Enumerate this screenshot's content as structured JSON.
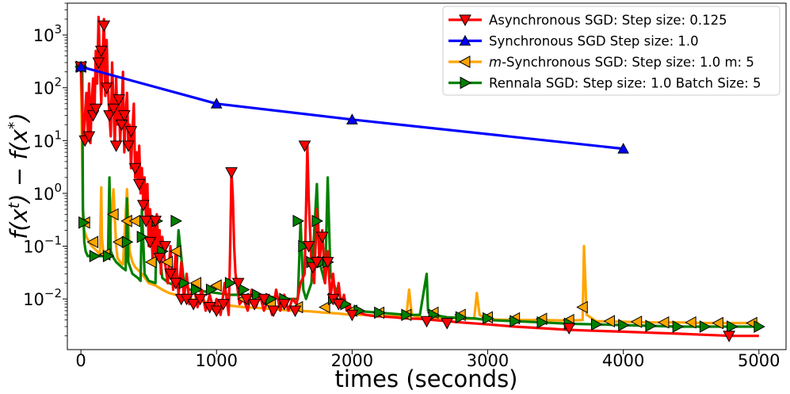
{
  "chart_data": {
    "type": "line",
    "title": "",
    "xlabel": "times (seconds)",
    "ylabel": "f(x^t) - f(x^*)",
    "xlim": [
      -100,
      5200
    ],
    "ylim": [
      0.0011,
      4000
    ],
    "yscale": "log",
    "x_ticks": [
      0,
      1000,
      2000,
      3000,
      4000,
      5000
    ],
    "y_ticks": [
      {
        "value": 0.01,
        "base": "10",
        "exp": "-2"
      },
      {
        "value": 0.1,
        "base": "10",
        "exp": "-1"
      },
      {
        "value": 1,
        "base": "10",
        "exp": "0"
      },
      {
        "value": 10,
        "base": "10",
        "exp": "1"
      },
      {
        "value": 100,
        "base": "10",
        "exp": "2"
      },
      {
        "value": 1000,
        "base": "10",
        "exp": "3"
      }
    ],
    "legend_position": "top-right",
    "series": [
      {
        "name": "Asynchronous SGD: Step size: 0.125",
        "color": "#ff0000",
        "marker": "triangle-down",
        "x": [
          0,
          10,
          20,
          30,
          40,
          50,
          60,
          70,
          80,
          90,
          100,
          110,
          120,
          130,
          140,
          150,
          160,
          170,
          180,
          190,
          200,
          210,
          220,
          230,
          240,
          250,
          260,
          270,
          280,
          290,
          300,
          310,
          320,
          330,
          340,
          350,
          360,
          370,
          380,
          390,
          400,
          410,
          420,
          430,
          440,
          450,
          460,
          470,
          480,
          490,
          500,
          510,
          520,
          530,
          540,
          550,
          560,
          570,
          580,
          590,
          600,
          620,
          640,
          660,
          680,
          700,
          720,
          740,
          760,
          780,
          800,
          830,
          860,
          890,
          920,
          950,
          980,
          1000,
          1030,
          1060,
          1090,
          1100,
          1110,
          1120,
          1130,
          1140,
          1150,
          1170,
          1200,
          1230,
          1260,
          1290,
          1320,
          1350,
          1380,
          1410,
          1440,
          1470,
          1500,
          1530,
          1560,
          1590,
          1620,
          1650,
          1670,
          1680,
          1690,
          1700,
          1720,
          1740,
          1760,
          1780,
          1800,
          1820,
          1840,
          1860,
          1880,
          1900,
          1920,
          1940,
          1960,
          1980,
          2000,
          2050,
          2100,
          2150,
          2200,
          2300,
          2400,
          2500,
          2600,
          2700,
          2800,
          3000,
          3200,
          3400,
          3600,
          3800,
          4000,
          4200,
          4400,
          4600,
          4800,
          5000
        ],
        "y": [
          250,
          40,
          10,
          30,
          80,
          15,
          120,
          9,
          60,
          150,
          30,
          500,
          120,
          2200,
          300,
          50,
          400,
          2000,
          70,
          800,
          100,
          30,
          12,
          300,
          50,
          8,
          150,
          20,
          60,
          10,
          40,
          200,
          6,
          30,
          80,
          8,
          20,
          3,
          15,
          50,
          2,
          6,
          1.5,
          8,
          1,
          3,
          0.6,
          2,
          0.3,
          1.5,
          0.1,
          0.5,
          0.2,
          0.05,
          0.3,
          0.08,
          0.4,
          0.06,
          0.2,
          0.03,
          0.15,
          0.05,
          0.02,
          0.1,
          0.015,
          0.08,
          0.012,
          0.05,
          0.01,
          0.03,
          0.008,
          0.02,
          0.007,
          0.015,
          0.006,
          0.012,
          0.006,
          0.01,
          0.005,
          0.02,
          0.005,
          0.08,
          2.5,
          0.9,
          0.1,
          0.03,
          0.02,
          0.008,
          0.01,
          0.006,
          0.015,
          0.007,
          0.012,
          0.006,
          0.01,
          0.005,
          0.015,
          0.006,
          0.012,
          0.006,
          0.01,
          0.008,
          0.02,
          0.03,
          8,
          0.8,
          0.2,
          0.05,
          0.02,
          0.5,
          0.05,
          0.2,
          0.02,
          0.08,
          0.01,
          0.03,
          0.008,
          0.02,
          0.007,
          0.012,
          0.006,
          0.008,
          0.005,
          0.0055,
          0.005,
          0.0048,
          0.0047,
          0.0045,
          0.0043,
          0.0042,
          0.004,
          0.0038,
          0.0036,
          0.0033,
          0.003,
          0.0028,
          0.0026,
          0.0025,
          0.0024,
          0.0023,
          0.0022,
          0.0021,
          0.002,
          0.002
        ],
        "marker_x": [
          0,
          30,
          60,
          90,
          110,
          130,
          150,
          170,
          190,
          210,
          240,
          260,
          280,
          300,
          320,
          350,
          370,
          400,
          430,
          460,
          480,
          510,
          550,
          580,
          620,
          660,
          700,
          740,
          780,
          830,
          880,
          950,
          1000,
          1050,
          1110,
          1160,
          1220,
          1280,
          1350,
          1420,
          1500,
          1580,
          1650,
          1680,
          1710,
          1740,
          1780,
          1820,
          1860,
          1900,
          2000,
          2550,
          2700,
          3600,
          4780
        ],
        "marker_y": [
          250,
          10,
          12,
          30,
          40,
          300,
          500,
          1500,
          100,
          30,
          40,
          8,
          60,
          20,
          30,
          8,
          15,
          3,
          1.5,
          0.6,
          0.3,
          0.12,
          0.3,
          0.06,
          0.1,
          0.03,
          0.02,
          0.01,
          0.01,
          0.008,
          0.01,
          0.007,
          0.006,
          0.008,
          2.5,
          0.02,
          0.01,
          0.008,
          0.01,
          0.006,
          0.008,
          0.006,
          8,
          0.1,
          0.04,
          0.05,
          0.15,
          0.05,
          0.01,
          0.008,
          0.005,
          0.0038,
          0.0035,
          0.0028,
          0.002
        ]
      },
      {
        "name": "Synchronous SGD Step size: 1.0",
        "color": "#0000ff",
        "marker": "triangle-up",
        "x": [
          0,
          1000,
          2000,
          4000
        ],
        "y": [
          250,
          50,
          25,
          7
        ],
        "marker_x": [
          0,
          1000,
          2000,
          4000
        ],
        "marker_y": [
          250,
          50,
          25,
          7
        ]
      },
      {
        "name": "m-Synchronous  SGD: Step size: 1.0 m: 5",
        "legend_prefix": "m",
        "legend_suffix": "-Synchronous  SGD: Step size: 1.0 m: 5",
        "color": "#ffa500",
        "marker": "triangle-left",
        "x": [
          0,
          15,
          25,
          40,
          60,
          80,
          100,
          120,
          140,
          150,
          155,
          165,
          180,
          200,
          240,
          260,
          270,
          290,
          310,
          340,
          360,
          380,
          400,
          450,
          500,
          550,
          600,
          650,
          700,
          750,
          800,
          850,
          900,
          950,
          1000,
          1100,
          1200,
          1300,
          1400,
          1500,
          1600,
          1700,
          1800,
          1900,
          2000,
          2100,
          2200,
          2300,
          2400,
          2420,
          2440,
          2500,
          2600,
          2800,
          2900,
          2920,
          2940,
          3000,
          3200,
          3400,
          3600,
          3700,
          3710,
          3730,
          3800,
          4000,
          4200,
          4400,
          4600,
          4800,
          5000
        ],
        "y": [
          250,
          0.3,
          0.2,
          0.15,
          0.12,
          0.1,
          0.09,
          0.08,
          0.07,
          1.3,
          0.15,
          0.08,
          0.07,
          0.06,
          1.2,
          0.1,
          0.06,
          0.05,
          0.045,
          1.2,
          0.08,
          0.05,
          0.04,
          0.03,
          0.02,
          0.018,
          0.015,
          0.013,
          0.012,
          0.011,
          0.01,
          0.0095,
          0.009,
          0.0085,
          0.008,
          0.0075,
          0.007,
          0.0068,
          0.0065,
          0.0062,
          0.006,
          0.0058,
          0.0055,
          0.0053,
          0.005,
          0.005,
          0.0048,
          0.0047,
          0.0046,
          0.015,
          0.005,
          0.0045,
          0.0044,
          0.0043,
          0.0042,
          0.013,
          0.005,
          0.0041,
          0.004,
          0.004,
          0.0039,
          0.004,
          0.1,
          0.005,
          0.0038,
          0.0037,
          0.0036,
          0.0036,
          0.0035,
          0.0035,
          0.0035
        ],
        "marker_x": [
          0,
          30,
          90,
          180,
          240,
          280,
          340,
          400,
          520,
          640,
          700,
          850,
          1000,
          1200,
          1400,
          1600,
          1800,
          2000,
          2200,
          2400,
          2600,
          2800,
          3000,
          3200,
          3400,
          3600,
          3700,
          3900,
          4100,
          4300,
          4500,
          4700,
          4950
        ],
        "marker_y": [
          250,
          0.28,
          0.12,
          0.07,
          0.4,
          0.12,
          0.3,
          0.3,
          0.05,
          0.05,
          0.08,
          0.02,
          0.018,
          0.01,
          0.008,
          0.007,
          0.007,
          0.006,
          0.0055,
          0.005,
          0.0055,
          0.005,
          0.0045,
          0.0043,
          0.0042,
          0.004,
          0.007,
          0.0038,
          0.0037,
          0.0036,
          0.0036,
          0.0035,
          0.0035
        ]
      },
      {
        "name": "Rennala SGD: Step size: 1.0 Batch Size: 5",
        "color": "#008000",
        "marker": "triangle-right",
        "x": [
          0,
          10,
          15,
          20,
          25,
          35,
          50,
          80,
          120,
          160,
          200,
          210,
          220,
          240,
          260,
          300,
          330,
          340,
          350,
          380,
          420,
          440,
          450,
          470,
          500,
          550,
          560,
          600,
          650,
          700,
          720,
          760,
          800,
          900,
          1000,
          1100,
          1200,
          1300,
          1400,
          1500,
          1600,
          1620,
          1640,
          1660,
          1700,
          1740,
          1760,
          1800,
          1820,
          1840,
          1880,
          1920,
          1950,
          2000,
          2200,
          2400,
          2500,
          2550,
          2560,
          2600,
          2700,
          2900,
          3000,
          3200,
          3400,
          3600,
          3800,
          4000,
          4200,
          4400,
          4600,
          4800,
          5000
        ],
        "y": [
          250,
          230,
          0.5,
          0.3,
          0.12,
          0.08,
          0.065,
          0.065,
          0.065,
          0.065,
          0.065,
          2.0,
          0.08,
          0.06,
          0.05,
          0.04,
          0.035,
          0.8,
          0.05,
          0.03,
          0.025,
          0.022,
          0.5,
          0.03,
          0.022,
          0.02,
          0.3,
          0.025,
          0.02,
          0.018,
          0.2,
          0.02,
          0.015,
          0.014,
          0.013,
          0.012,
          0.012,
          0.011,
          0.011,
          0.01,
          0.01,
          0.3,
          0.015,
          0.01,
          0.02,
          1.5,
          0.05,
          0.02,
          2.0,
          0.03,
          0.015,
          0.01,
          0.008,
          0.006,
          0.0055,
          0.005,
          0.005,
          0.03,
          0.006,
          0.005,
          0.0045,
          0.0043,
          0.004,
          0.0038,
          0.0036,
          0.0034,
          0.0033,
          0.0032,
          0.0031,
          0.003,
          0.003,
          0.003,
          0.003
        ],
        "marker_x": [
          0,
          20,
          100,
          200,
          340,
          450,
          560,
          600,
          700,
          760,
          850,
          960,
          1100,
          1200,
          1300,
          1400,
          1500,
          1600,
          1640,
          1700,
          1740,
          1780,
          1820,
          1860,
          1950,
          2050,
          2200,
          2400,
          2600,
          2800,
          3000,
          3200,
          3400,
          3600,
          3800,
          4000,
          4200,
          4400,
          4600,
          4800,
          5000
        ],
        "marker_y": [
          250,
          0.28,
          0.065,
          0.065,
          0.12,
          0.15,
          0.3,
          0.08,
          0.3,
          0.02,
          0.015,
          0.015,
          0.02,
          0.015,
          0.012,
          0.01,
          0.01,
          0.3,
          0.1,
          0.05,
          0.3,
          0.05,
          0.05,
          0.01,
          0.008,
          0.006,
          0.0055,
          0.005,
          0.005,
          0.0045,
          0.0043,
          0.0038,
          0.0036,
          0.0034,
          0.0033,
          0.0032,
          0.0031,
          0.003,
          0.003,
          0.003,
          0.003
        ]
      }
    ]
  }
}
